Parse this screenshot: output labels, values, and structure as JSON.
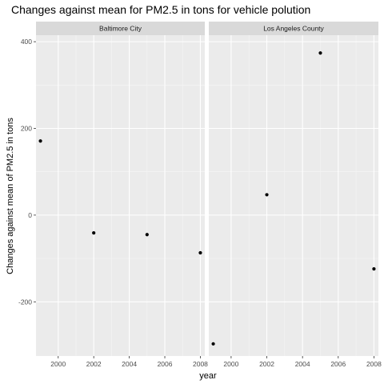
{
  "chart_data": {
    "type": "scatter",
    "title": "Changes against mean for PM2.5 in tons for vehicle polution",
    "xlabel": "year",
    "ylabel": "Changes against mean of PM2.5 in tons",
    "xlim": [
      1998.75,
      2008.25
    ],
    "ylim": [
      -325,
      415
    ],
    "x_ticks": [
      2000,
      2002,
      2004,
      2006,
      2008
    ],
    "y_ticks": [
      -200,
      0,
      200,
      400
    ],
    "x_tick_labels": [
      "2000",
      "2002",
      "2004",
      "2006",
      "2008"
    ],
    "y_tick_labels": [
      "-200",
      "0",
      "200",
      "400"
    ],
    "grid": true,
    "panels": [
      {
        "name": "Baltimore City",
        "points": [
          {
            "x": 1999,
            "y": 171
          },
          {
            "x": 2002,
            "y": -41
          },
          {
            "x": 2005,
            "y": -45
          },
          {
            "x": 2008,
            "y": -87
          }
        ]
      },
      {
        "name": "Los Angeles County",
        "points": [
          {
            "x": 1999,
            "y": -297
          },
          {
            "x": 2002,
            "y": 47
          },
          {
            "x": 2005,
            "y": 374
          },
          {
            "x": 2008,
            "y": -124
          }
        ]
      }
    ],
    "colors": {
      "panel_background": "#ebebeb",
      "grid_major": "#ffffff",
      "grid_minor": "#f5f5f5",
      "strip_background": "#d9d9d9",
      "point": "#000000",
      "tick": "#333333"
    }
  }
}
